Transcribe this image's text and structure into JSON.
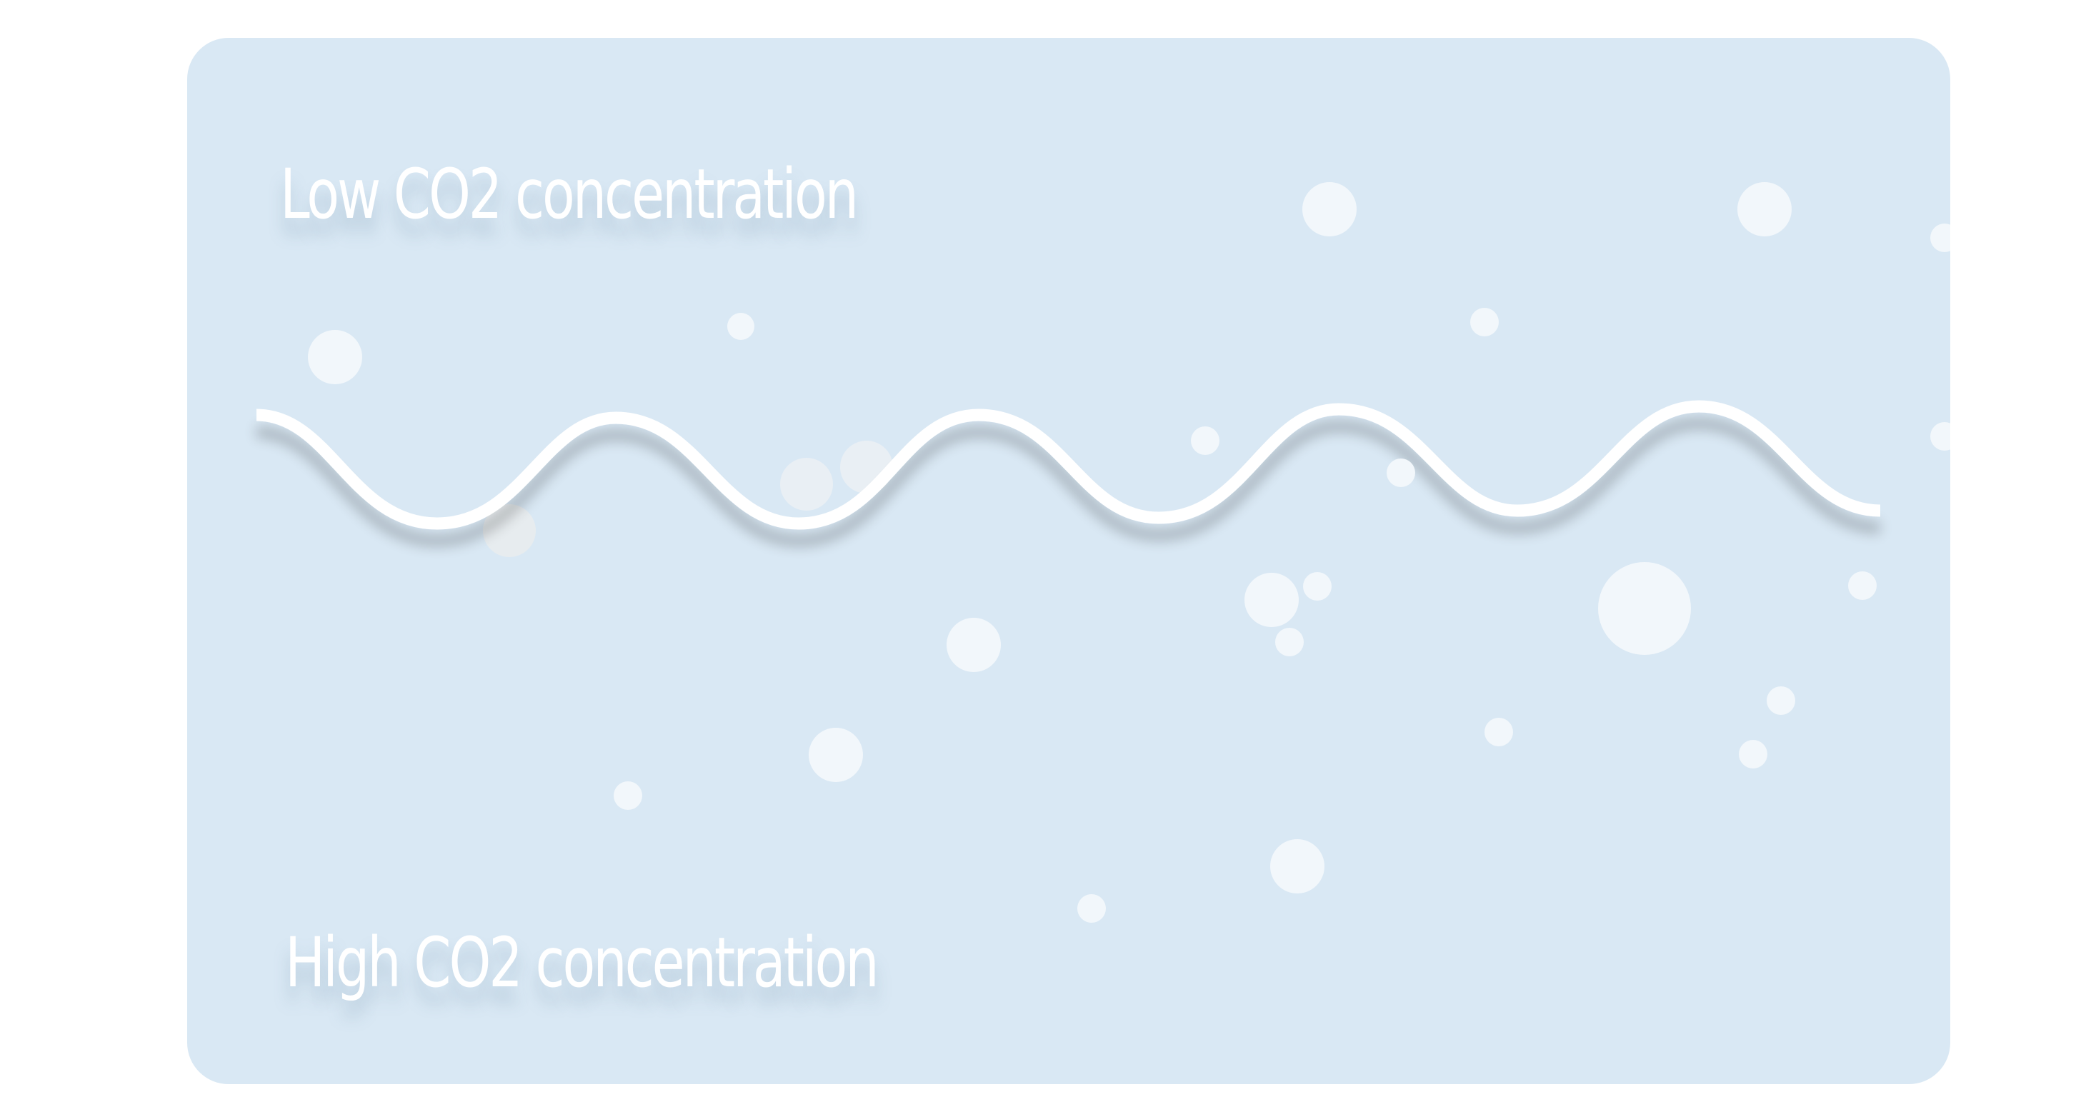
{
  "diagram": {
    "top_label": "Low CO2 concentration",
    "bottom_label": "High CO2 concentration",
    "colors": {
      "background": "#d9e8f4",
      "wave": "#ffffff",
      "bubble": "#f2f7fb",
      "text": "#ffffff"
    },
    "wave": {
      "cycles": 4.5
    },
    "bubbles": {
      "count": 30
    }
  }
}
